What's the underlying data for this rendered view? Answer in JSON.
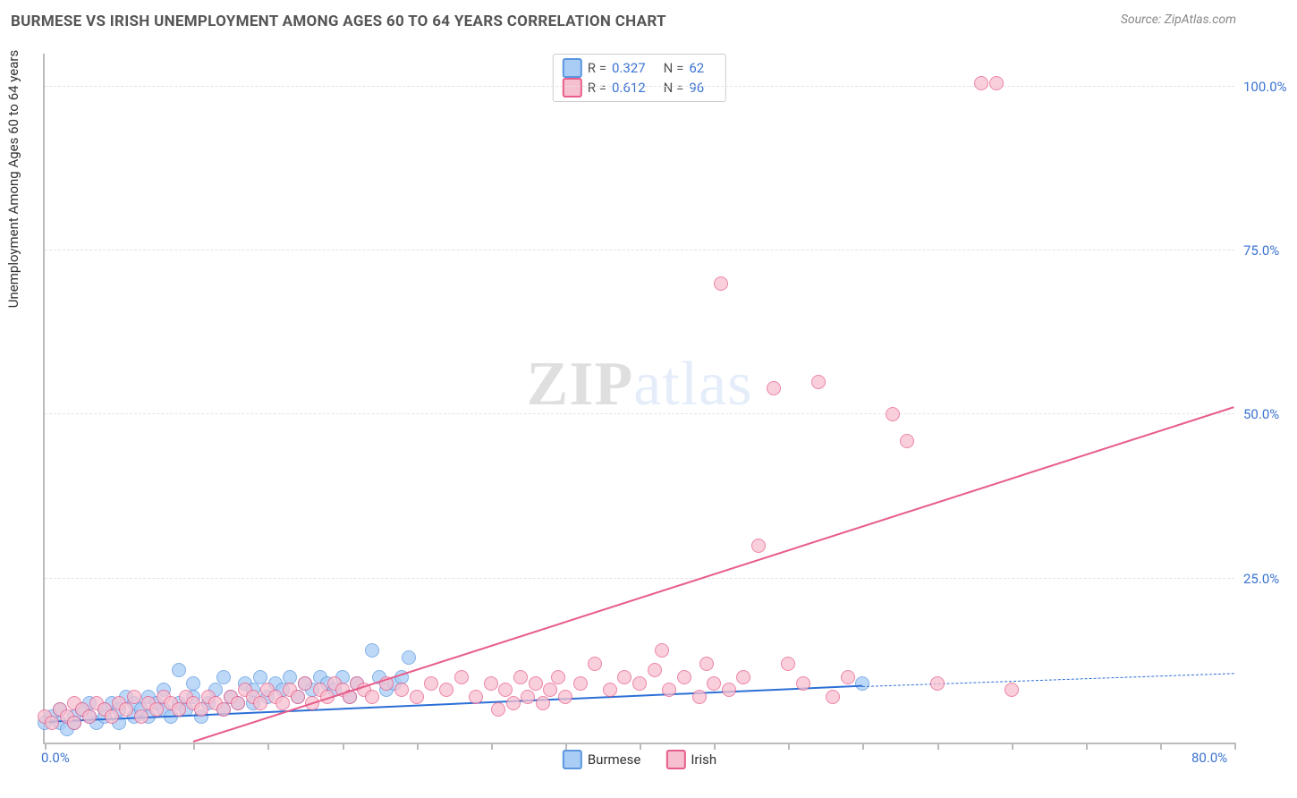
{
  "title": "BURMESE VS IRISH UNEMPLOYMENT AMONG AGES 60 TO 64 YEARS CORRELATION CHART",
  "source": "Source: ZipAtlas.com",
  "watermark": {
    "bold": "ZIP",
    "light": "atlas"
  },
  "chart": {
    "type": "scatter-with-regression",
    "ylabel": "Unemployment Among Ages 60 to 64 years",
    "background_color": "#ffffff",
    "grid_color": "#e4e4e4",
    "axis_color": "#bbbbbb",
    "value_color": "#3b73d1",
    "xlim": [
      0,
      80
    ],
    "ylim": [
      0,
      105
    ],
    "yticks": [
      {
        "v": 25,
        "label": "25.0%"
      },
      {
        "v": 50,
        "label": "50.0%"
      },
      {
        "v": 75,
        "label": "75.0%"
      },
      {
        "v": 100,
        "label": "100.0%"
      }
    ],
    "xticks": [
      {
        "v": 0,
        "label": "0.0%"
      },
      {
        "v": 5
      },
      {
        "v": 10
      },
      {
        "v": 15
      },
      {
        "v": 20
      },
      {
        "v": 25
      },
      {
        "v": 30
      },
      {
        "v": 35
      },
      {
        "v": 40
      },
      {
        "v": 45
      },
      {
        "v": 50
      },
      {
        "v": 55
      },
      {
        "v": 60
      },
      {
        "v": 65
      },
      {
        "v": 70
      },
      {
        "v": 75
      },
      {
        "v": 80,
        "label": "80.0%"
      }
    ],
    "marker_radius": 8,
    "series": [
      {
        "name": "Burmese",
        "stat_R": "0.327",
        "stat_N": "62",
        "fill": "#a9cdf5",
        "stroke": "#5a97e0",
        "line_color": "#2c6fd6",
        "line_from": [
          0,
          3
        ],
        "line_to": [
          55,
          8.5
        ],
        "dash_to": [
          80,
          10.5
        ],
        "points": [
          [
            0,
            3
          ],
          [
            0.5,
            4
          ],
          [
            1,
            3
          ],
          [
            1,
            5
          ],
          [
            1.5,
            2
          ],
          [
            2,
            4
          ],
          [
            2,
            3
          ],
          [
            2.5,
            5
          ],
          [
            3,
            4
          ],
          [
            3,
            6
          ],
          [
            3.5,
            3
          ],
          [
            4,
            5
          ],
          [
            4,
            4
          ],
          [
            4.5,
            6
          ],
          [
            5,
            3
          ],
          [
            5,
            5
          ],
          [
            5.5,
            7
          ],
          [
            6,
            4
          ],
          [
            6,
            6
          ],
          [
            6.5,
            5
          ],
          [
            7,
            7
          ],
          [
            7,
            4
          ],
          [
            7.5,
            6
          ],
          [
            8,
            5
          ],
          [
            8,
            8
          ],
          [
            8.5,
            4
          ],
          [
            9,
            11
          ],
          [
            9,
            6
          ],
          [
            9.5,
            5
          ],
          [
            10,
            7
          ],
          [
            10,
            9
          ],
          [
            10.5,
            4
          ],
          [
            11,
            6
          ],
          [
            11.5,
            8
          ],
          [
            12,
            5
          ],
          [
            12,
            10
          ],
          [
            12.5,
            7
          ],
          [
            13,
            6
          ],
          [
            13.5,
            9
          ],
          [
            14,
            8
          ],
          [
            14,
            6
          ],
          [
            14.5,
            10
          ],
          [
            15,
            7
          ],
          [
            15.5,
            9
          ],
          [
            16,
            8
          ],
          [
            16.5,
            10
          ],
          [
            17,
            7
          ],
          [
            17.5,
            9
          ],
          [
            18,
            8
          ],
          [
            18.5,
            10
          ],
          [
            19,
            9
          ],
          [
            19.5,
            8
          ],
          [
            20,
            10
          ],
          [
            20.5,
            7
          ],
          [
            21,
            9
          ],
          [
            22,
            14
          ],
          [
            22.5,
            10
          ],
          [
            23,
            8
          ],
          [
            23.5,
            9
          ],
          [
            24,
            10
          ],
          [
            24.5,
            13
          ],
          [
            55,
            9
          ]
        ]
      },
      {
        "name": "Irish",
        "stat_R": "0.612",
        "stat_N": "96",
        "fill": "#f6c0d0",
        "stroke": "#e75d8a",
        "line_color": "#e75d8a",
        "line_from": [
          10,
          0
        ],
        "line_to": [
          80,
          51
        ],
        "points": [
          [
            0,
            4
          ],
          [
            0.5,
            3
          ],
          [
            1,
            5
          ],
          [
            1.5,
            4
          ],
          [
            2,
            6
          ],
          [
            2,
            3
          ],
          [
            2.5,
            5
          ],
          [
            3,
            4
          ],
          [
            3.5,
            6
          ],
          [
            4,
            5
          ],
          [
            4.5,
            4
          ],
          [
            5,
            6
          ],
          [
            5.5,
            5
          ],
          [
            6,
            7
          ],
          [
            6.5,
            4
          ],
          [
            7,
            6
          ],
          [
            7.5,
            5
          ],
          [
            8,
            7
          ],
          [
            8.5,
            6
          ],
          [
            9,
            5
          ],
          [
            9.5,
            7
          ],
          [
            10,
            6
          ],
          [
            10.5,
            5
          ],
          [
            11,
            7
          ],
          [
            11.5,
            6
          ],
          [
            12,
            5
          ],
          [
            12.5,
            7
          ],
          [
            13,
            6
          ],
          [
            13.5,
            8
          ],
          [
            14,
            7
          ],
          [
            14.5,
            6
          ],
          [
            15,
            8
          ],
          [
            15.5,
            7
          ],
          [
            16,
            6
          ],
          [
            16.5,
            8
          ],
          [
            17,
            7
          ],
          [
            17.5,
            9
          ],
          [
            18,
            6
          ],
          [
            18.5,
            8
          ],
          [
            19,
            7
          ],
          [
            19.5,
            9
          ],
          [
            20,
            8
          ],
          [
            20.5,
            7
          ],
          [
            21,
            9
          ],
          [
            21.5,
            8
          ],
          [
            22,
            7
          ],
          [
            23,
            9
          ],
          [
            24,
            8
          ],
          [
            25,
            7
          ],
          [
            26,
            9
          ],
          [
            27,
            8
          ],
          [
            28,
            10
          ],
          [
            29,
            7
          ],
          [
            30,
            9
          ],
          [
            30.5,
            5
          ],
          [
            31,
            8
          ],
          [
            31.5,
            6
          ],
          [
            32,
            10
          ],
          [
            32.5,
            7
          ],
          [
            33,
            9
          ],
          [
            33.5,
            6
          ],
          [
            34,
            8
          ],
          [
            34.5,
            10
          ],
          [
            35,
            7
          ],
          [
            36,
            9
          ],
          [
            37,
            12
          ],
          [
            38,
            8
          ],
          [
            39,
            10
          ],
          [
            40,
            9
          ],
          [
            41,
            11
          ],
          [
            41.5,
            14
          ],
          [
            42,
            8
          ],
          [
            43,
            10
          ],
          [
            44,
            7
          ],
          [
            44.5,
            12
          ],
          [
            45,
            9
          ],
          [
            45.5,
            70
          ],
          [
            46,
            8
          ],
          [
            47,
            10
          ],
          [
            48,
            30
          ],
          [
            49,
            54
          ],
          [
            50,
            12
          ],
          [
            51,
            9
          ],
          [
            52,
            55
          ],
          [
            53,
            7
          ],
          [
            54,
            10
          ],
          [
            57,
            50
          ],
          [
            58,
            46
          ],
          [
            60,
            9
          ],
          [
            63,
            100.5
          ],
          [
            64,
            100.5
          ],
          [
            65,
            8
          ]
        ]
      }
    ]
  }
}
